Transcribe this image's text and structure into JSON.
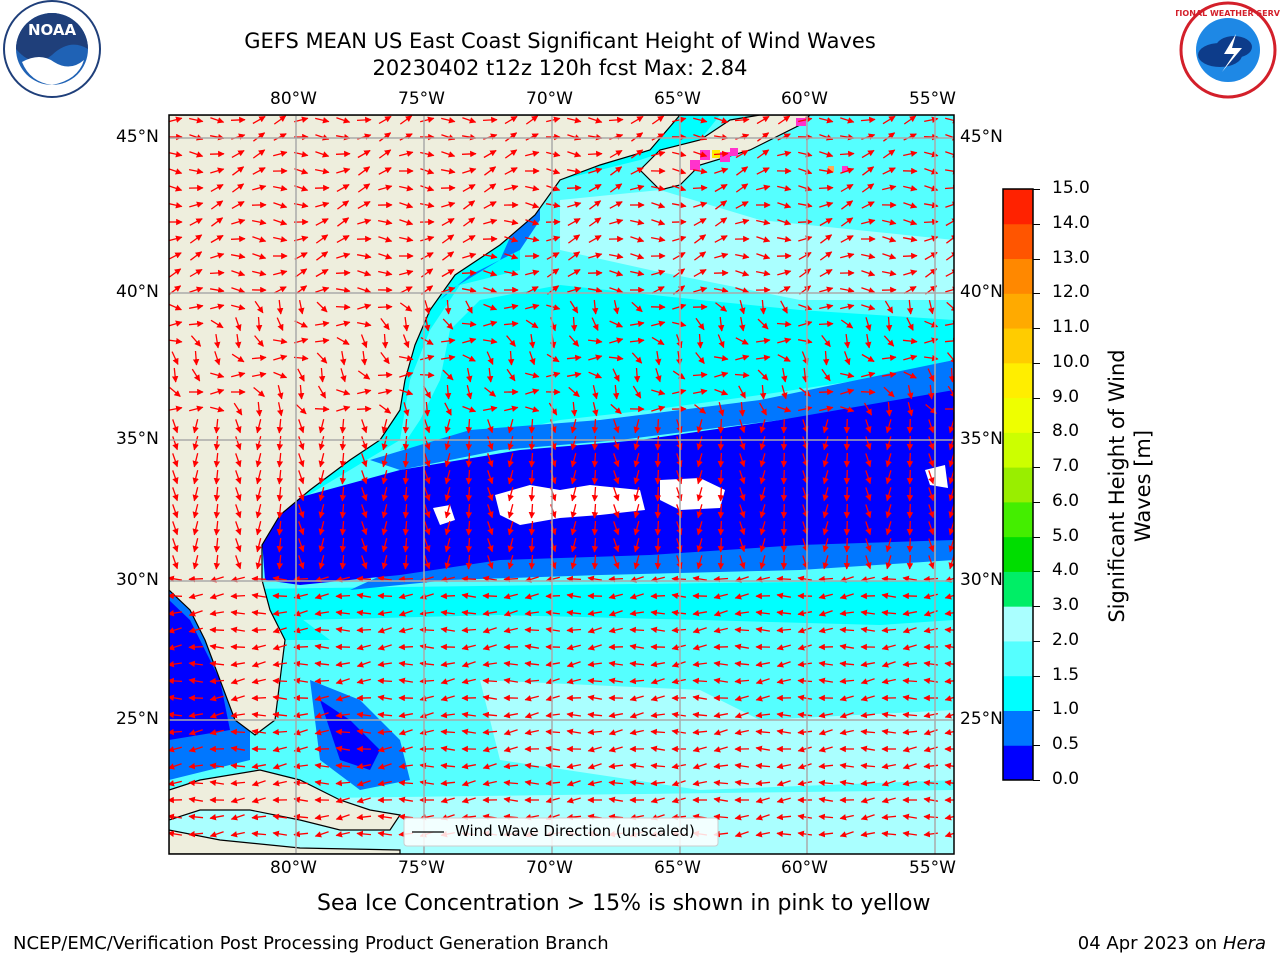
{
  "header": {
    "title_line1": "GEFS MEAN US East Coast Significant Height of Wind Waves",
    "title_line2": "20230402 t12z 120h fcst   Max: 2.84"
  },
  "logos": {
    "left": "NOAA",
    "right": "NATIONAL WEATHER SERVICE",
    "left_ring": "NATIONAL OCEANIC AND ATMOSPHERIC ADMINISTRATION · U.S. DEPARTMENT OF COMMERCE"
  },
  "map": {
    "lon_labels": [
      "80°W",
      "75°W",
      "70°W",
      "65°W",
      "60°W",
      "55°W"
    ],
    "lat_labels": [
      "45°N",
      "40°N",
      "35°N",
      "30°N",
      "25°N"
    ],
    "legend_label": "Wind Wave Direction (unscaled)",
    "colors": {
      "land": "#eeeedd",
      "water0": "#0000ff",
      "water05": "#0077ff",
      "water1": "#00ffff",
      "water15": "#55ffff",
      "water2": "#aaffff",
      "arrow": "#ff0000",
      "ice": "#ff33cc",
      "grid": "#aaaaaa"
    }
  },
  "colorbar": {
    "title_line1": "Significant Height of Wind",
    "title_line2": "Waves [m]",
    "ticks": [
      "0.0",
      "0.5",
      "1.0",
      "1.5",
      "2.0",
      "3.0",
      "4.0",
      "5.0",
      "6.0",
      "7.0",
      "8.0",
      "9.0",
      "10.0",
      "11.0",
      "12.0",
      "13.0",
      "14.0",
      "15.0"
    ],
    "colors": [
      "#0000ff",
      "#0077ff",
      "#00ffff",
      "#55ffff",
      "#aaffff",
      "#00ee66",
      "#00dd00",
      "#44ee00",
      "#99ee00",
      "#ccff00",
      "#eeff00",
      "#ffee00",
      "#ffcc00",
      "#ffaa00",
      "#ff8800",
      "#ff5500",
      "#ff2200"
    ]
  },
  "footer": {
    "ice_note": "Sea Ice Concentration > 15% is shown in pink to yellow",
    "branch": "NCEP/EMC/Verification Post Processing Product Generation Branch",
    "date_prefix": "04 Apr 2023 on ",
    "date_host": "Hera"
  }
}
